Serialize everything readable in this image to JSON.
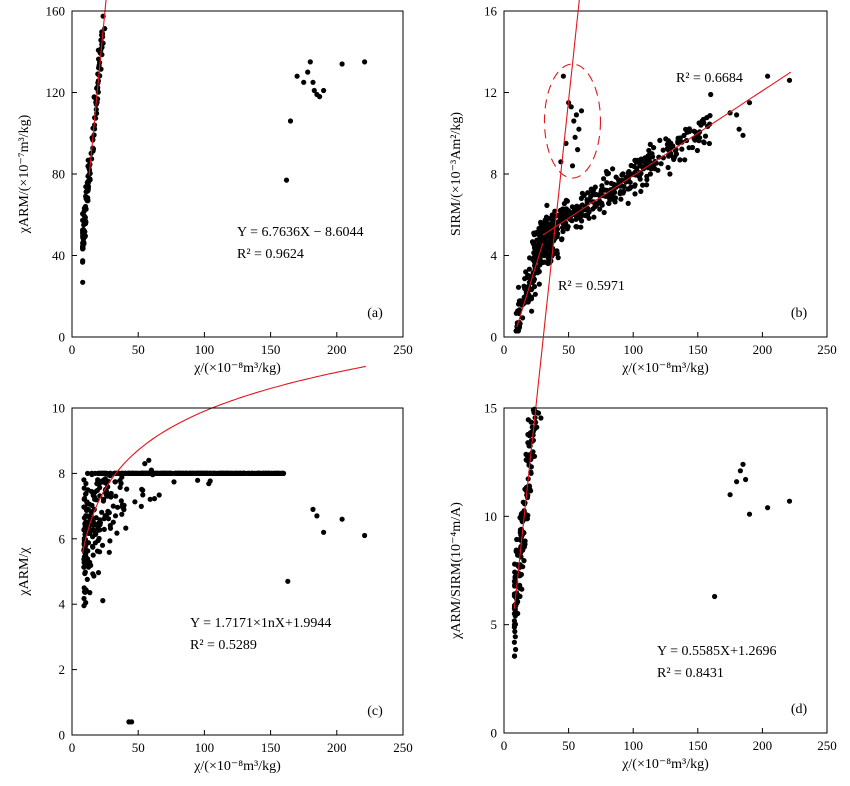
{
  "chart_data": [
    {
      "id": "a",
      "type": "scatter",
      "panel_label": "(a)",
      "xlabel": "χ/(×10⁻⁸m³/kg)",
      "ylabel": "χARM/(×10⁻⁷m³/kg)",
      "xlim": [
        0,
        250
      ],
      "ylim": [
        0,
        160
      ],
      "xticks": [
        0,
        50,
        100,
        150,
        200,
        250
      ],
      "yticks": [
        0,
        40,
        80,
        120,
        160
      ],
      "grid": false,
      "fit": {
        "kind": "linear",
        "slope": 6.7636,
        "intercept": -8.6044,
        "x_range": [
          13,
          222
        ]
      },
      "annotations": [
        "Y = 6.7636X − 8.6044",
        "R² = 0.9624"
      ],
      "cloud": {
        "x_range": [
          8,
          160
        ],
        "spread": 5.5,
        "count": 520
      },
      "x": [
        175,
        178,
        180,
        182,
        183,
        185,
        187,
        190,
        204,
        221,
        165,
        170,
        162
      ],
      "y": [
        125,
        130,
        135,
        125,
        121,
        119,
        118,
        121,
        134,
        135,
        106,
        128,
        77
      ]
    },
    {
      "id": "b",
      "type": "scatter",
      "panel_label": "(b)",
      "xlabel": "χ/(×10⁻⁸m³/kg)",
      "ylabel": "SIRM/(×10⁻³Am²/kg)",
      "xlim": [
        0,
        250
      ],
      "ylim": [
        0,
        16
      ],
      "xticks": [
        0,
        50,
        100,
        150,
        200,
        250
      ],
      "yticks": [
        0,
        4,
        8,
        12,
        16
      ],
      "grid": false,
      "fit_segments": [
        {
          "kind": "linear",
          "x_range": [
            10,
            30
          ],
          "y_range": [
            0.5,
            4.6
          ],
          "r2_label": "R² = 0.5971"
        },
        {
          "kind": "linear",
          "x_range": [
            30,
            222
          ],
          "y_range": [
            5.0,
            13.0
          ],
          "r2_label": "R² = 0.6684"
        }
      ],
      "annotations": [
        "R² = 0.6684",
        "R² = 0.5971"
      ],
      "outlier_group": {
        "x": [
          44,
          48,
          50,
          52,
          54,
          55,
          56,
          57,
          58,
          60,
          46,
          53
        ],
        "y": [
          8.6,
          9.5,
          11.5,
          11.3,
          10.6,
          9.8,
          10.9,
          9.2,
          10.2,
          11.1,
          12.8,
          8.4
        ]
      },
      "x": [
        175,
        180,
        182,
        185,
        190,
        204,
        221,
        160
      ],
      "y": [
        11.0,
        10.9,
        10.2,
        9.9,
        11.5,
        12.8,
        12.6,
        11.9
      ]
    },
    {
      "id": "c",
      "type": "scatter",
      "panel_label": "(c)",
      "xlabel": "χ/(×10⁻⁸m³/kg)",
      "ylabel": "χARM/χ",
      "xlim": [
        0,
        250
      ],
      "ylim": [
        0,
        10
      ],
      "xticks": [
        0,
        50,
        100,
        150,
        200,
        250
      ],
      "yticks": [
        0,
        2,
        4,
        6,
        8,
        10
      ],
      "grid": false,
      "fit": {
        "kind": "log",
        "a": 1.7171,
        "b": 1.9944,
        "x_range": [
          8,
          222
        ]
      },
      "annotations": [
        "Y = 1.7171×1nX+1.9944",
        "R² = 0.5289"
      ],
      "x": [
        55,
        58,
        60,
        43,
        45,
        221,
        204,
        190,
        182,
        185,
        163
      ],
      "y": [
        8.3,
        8.4,
        8.1,
        0.4,
        0.4,
        6.1,
        6.6,
        6.2,
        6.9,
        6.7,
        4.7
      ]
    },
    {
      "id": "d",
      "type": "scatter",
      "panel_label": "(d)",
      "xlabel": "χ/(×10⁻⁸m³/kg)",
      "ylabel": "χARM/SIRM(10⁻⁴m/A)",
      "xlim": [
        0,
        250
      ],
      "ylim": [
        0,
        15
      ],
      "xticks": [
        0,
        50,
        100,
        150,
        200,
        250
      ],
      "yticks": [
        0,
        5,
        10,
        15
      ],
      "grid": false,
      "fit": {
        "kind": "linear",
        "slope": 0.5585,
        "intercept": 1.2696,
        "x_range": [
          8,
          222
        ]
      },
      "annotations": [
        "Y = 0.5585X+1.2696",
        "R² = 0.8431"
      ],
      "x": [
        180,
        183,
        185,
        187,
        190,
        204,
        221,
        163,
        175
      ],
      "y": [
        11.6,
        12.1,
        12.4,
        11.7,
        10.1,
        10.4,
        10.7,
        6.3,
        11.0
      ]
    }
  ]
}
